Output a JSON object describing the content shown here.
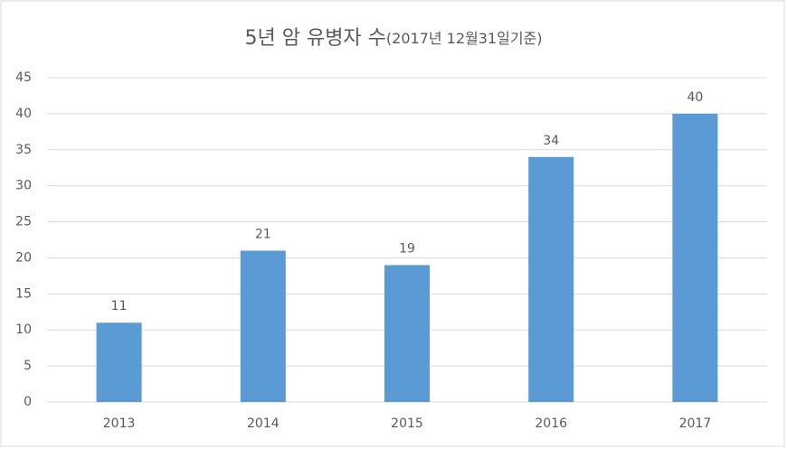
{
  "chart_data": {
    "type": "bar",
    "title": "5년 암 유병자 수",
    "subtitle": "(2017년 12월31일기준)",
    "categories": [
      "2013",
      "2014",
      "2015",
      "2016",
      "2017"
    ],
    "values": [
      11,
      21,
      19,
      34,
      40
    ],
    "color": "#5b9bd5",
    "ylim": [
      0,
      45
    ],
    "yticks": [
      0,
      5,
      10,
      15,
      20,
      25,
      30,
      35,
      40,
      45
    ],
    "grid": true
  }
}
